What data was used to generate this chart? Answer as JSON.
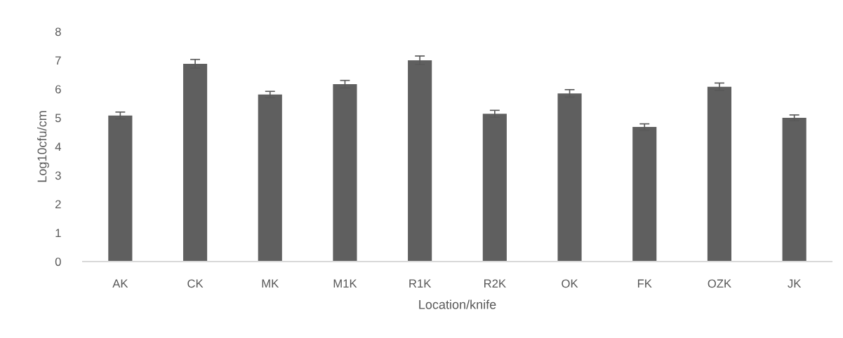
{
  "chart_data": {
    "type": "bar",
    "xlabel": "Location/knife",
    "ylabel": "Log10cfu/cm",
    "categories": [
      "AK",
      "CK",
      "MK",
      "M1K",
      "R1K",
      "R2K",
      "OK",
      "FK",
      "OZK",
      "JK"
    ],
    "values": [
      5.08,
      6.88,
      5.81,
      6.17,
      7.0,
      5.14,
      5.85,
      4.68,
      6.08,
      5.0
    ],
    "errors": [
      0.12,
      0.15,
      0.11,
      0.13,
      0.15,
      0.12,
      0.13,
      0.11,
      0.13,
      0.1
    ],
    "color": "#5f5f5f",
    "ylim": [
      0,
      8
    ],
    "yticks": [
      0,
      1,
      2,
      3,
      4,
      5,
      6,
      7,
      8
    ],
    "grid": false
  }
}
